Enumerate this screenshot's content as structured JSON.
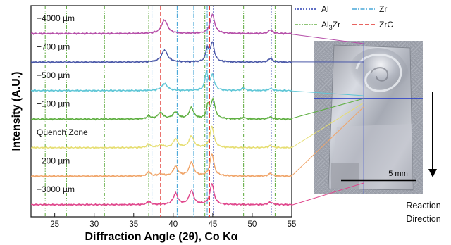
{
  "chart_data": {
    "type": "line",
    "xlabel": "Diffraction Angle (2θ), Co Kα",
    "ylabel": "Intensity (A.U.)",
    "xlim": [
      22,
      55
    ],
    "x_ticks": [
      "25",
      "30",
      "35",
      "40",
      "45",
      "50",
      "55"
    ],
    "grid": false,
    "legend": [
      {
        "label": "Al",
        "color": "#2a3fb0",
        "dash": "2,2"
      },
      {
        "label": "Zr",
        "color": "#49a7d8",
        "dash": "6,2,1.5,2"
      },
      {
        "label": "Al3Zr",
        "label_base": "Al",
        "label_sub": "3",
        "label_rest": "Zr",
        "color": "#6ab04c",
        "dash": "5,2,1.5,2,1.5,2"
      },
      {
        "label": "ZrC",
        "color": "#e0302b",
        "dash": "6,3"
      }
    ],
    "reference_lines": [
      {
        "phase": "Al",
        "x": [
          45.1,
          52.4
        ],
        "color": "#2a3fb0",
        "dash": "2,2"
      },
      {
        "phase": "Zr",
        "x": [
          37.3,
          40.5,
          42.6,
          44.3
        ],
        "color": "#49a7d8",
        "dash": "6,2,1.5,2"
      },
      {
        "phase": "Al3Zr",
        "x": [
          23.8,
          26.5,
          31.3,
          36.9,
          44.0,
          48.9,
          52.9
        ],
        "color": "#6ab04c",
        "dash": "5,2,1.5,2,1.5,2"
      },
      {
        "phase": "ZrC",
        "x": [
          38.4,
          44.6
        ],
        "color": "#e0302b",
        "dash": "6,3"
      }
    ],
    "series": [
      {
        "name": "+4000  µm",
        "color": "#b54ea8",
        "baseline": 0.3,
        "peaks": [
          {
            "x": 38.9,
            "h": 2.6,
            "w": 0.45
          },
          {
            "x": 44.95,
            "h": 3.6,
            "w": 0.35
          },
          {
            "x": 52.3,
            "h": 0.7,
            "w": 0.3
          }
        ]
      },
      {
        "name": "+700  µm",
        "color": "#4a58a8",
        "baseline": 0.3,
        "peaks": [
          {
            "x": 38.9,
            "h": 2.3,
            "w": 0.45
          },
          {
            "x": 44.3,
            "h": 2.4,
            "w": 0.22
          },
          {
            "x": 44.95,
            "h": 3.6,
            "w": 0.3
          },
          {
            "x": 52.3,
            "h": 0.7,
            "w": 0.3
          }
        ]
      },
      {
        "name": "+500  µm",
        "color": "#5ec6d6",
        "baseline": 0.3,
        "peaks": [
          {
            "x": 38.9,
            "h": 1.3,
            "w": 0.45
          },
          {
            "x": 44.2,
            "h": 3.3,
            "w": 0.22
          },
          {
            "x": 44.95,
            "h": 2.8,
            "w": 0.3
          },
          {
            "x": 48.9,
            "h": 0.5,
            "w": 0.25
          },
          {
            "x": 52.3,
            "h": 0.4,
            "w": 0.3
          }
        ]
      },
      {
        "name": "+100  µm",
        "color": "#5cae3e",
        "baseline": 0.3,
        "peaks": [
          {
            "x": 36.9,
            "h": 0.6,
            "w": 0.25
          },
          {
            "x": 38.4,
            "h": 1.2,
            "w": 0.4
          },
          {
            "x": 40.3,
            "h": 1.3,
            "w": 0.4
          },
          {
            "x": 42.3,
            "h": 2.1,
            "w": 0.35
          },
          {
            "x": 44.4,
            "h": 2.5,
            "w": 0.22
          },
          {
            "x": 45.05,
            "h": 3.6,
            "w": 0.3
          },
          {
            "x": 48.9,
            "h": 0.3,
            "w": 0.25
          },
          {
            "x": 52.3,
            "h": 0.4,
            "w": 0.3
          }
        ]
      },
      {
        "name": "Quench Zone",
        "color": "#e6de72",
        "baseline": 0.3,
        "peaks": [
          {
            "x": 36.9,
            "h": 0.7,
            "w": 0.25
          },
          {
            "x": 38.4,
            "h": 0.5,
            "w": 0.4
          },
          {
            "x": 40.3,
            "h": 1.6,
            "w": 0.35
          },
          {
            "x": 42.3,
            "h": 2.2,
            "w": 0.35
          },
          {
            "x": 44.9,
            "h": 4.0,
            "w": 0.3
          },
          {
            "x": 52.3,
            "h": 0.4,
            "w": 0.3
          }
        ]
      },
      {
        "name": "−200  µm",
        "color": "#f0a468",
        "baseline": 0.3,
        "peaks": [
          {
            "x": 36.9,
            "h": 0.8,
            "w": 0.25
          },
          {
            "x": 38.4,
            "h": 0.4,
            "w": 0.4
          },
          {
            "x": 40.3,
            "h": 1.8,
            "w": 0.35
          },
          {
            "x": 42.3,
            "h": 2.6,
            "w": 0.35
          },
          {
            "x": 44.9,
            "h": 4.2,
            "w": 0.3
          },
          {
            "x": 52.3,
            "h": 0.5,
            "w": 0.3
          }
        ]
      },
      {
        "name": "−3000  µm",
        "color": "#e0468c",
        "baseline": 0.3,
        "peaks": [
          {
            "x": 36.9,
            "h": 0.6,
            "w": 0.25
          },
          {
            "x": 40.3,
            "h": 2.1,
            "w": 0.35
          },
          {
            "x": 42.3,
            "h": 2.6,
            "w": 0.35
          },
          {
            "x": 44.9,
            "h": 4.0,
            "w": 0.3
          },
          {
            "x": 52.3,
            "h": 0.5,
            "w": 0.3
          }
        ]
      }
    ]
  },
  "inset": {
    "scale_bar": "5 mm",
    "arrow_label_line1": "Reaction",
    "arrow_label_line2": "Direction"
  }
}
